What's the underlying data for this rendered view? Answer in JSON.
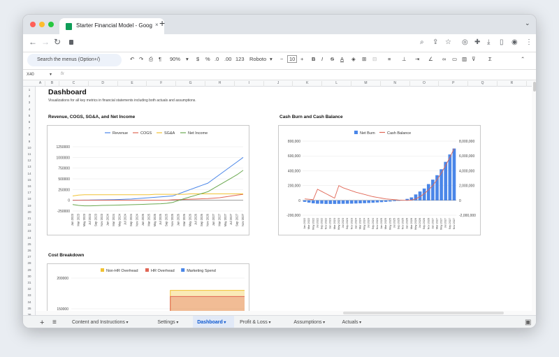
{
  "browser": {
    "tab_title": "Starter Financial Model - Goog",
    "close": "×",
    "new_tab": "+",
    "traffic_colors": [
      "#ff5f57",
      "#febc2e",
      "#28c840"
    ]
  },
  "toolbar": {
    "menu_search": "Search the menus (Option+/)",
    "zoom": "90%",
    "currency": "$",
    "percent": "%",
    "dec_less": ".0",
    "dec_more": ".00",
    "number_format": "123",
    "font": "Roboto",
    "font_size": "10",
    "minus": "−",
    "plus": "+",
    "bold": "B",
    "italic": "I",
    "strike": "S",
    "text_color": "A",
    "sigma": "Σ"
  },
  "formula_bar": {
    "cell_ref": "X40",
    "fx": "fx"
  },
  "columns": [
    "A",
    "B",
    "C",
    "D",
    "E",
    "F",
    "G",
    "H",
    "I",
    "J",
    "K",
    "L",
    "M",
    "N",
    "O",
    "P",
    "Q",
    "R"
  ],
  "rows": [
    "1",
    "2",
    "3",
    "4",
    "5",
    "6",
    "7",
    "8",
    "9",
    "10",
    "11",
    "12",
    "13",
    "14",
    "15",
    "16",
    "17",
    "18",
    "19",
    "20",
    "21",
    "22",
    "23",
    "24",
    "25",
    "26",
    "27",
    "28",
    "29",
    "30",
    "31",
    "32",
    "33",
    "34",
    "35",
    "36"
  ],
  "page": {
    "title": "Dashboard",
    "subtitle": "Visualizations for all key metrics in financial statements including both actuals and assumptions."
  },
  "chart_data": [
    {
      "type": "line",
      "title": "Revenue, COGS, SG&A, and Net Income",
      "x": [
        "Jan 2023",
        "Mar 2023",
        "May 2023",
        "Jul 2023",
        "Sep 2023",
        "Nov 2023",
        "Jan 2024",
        "Mar 2024",
        "May 2024",
        "Jul 2024",
        "Sep 2024",
        "Nov 2024",
        "Jan 2025",
        "Mar 2025",
        "May 2025",
        "Jul 2025",
        "Sep 2025",
        "Nov 2025",
        "Jan 2026",
        "Mar 2026",
        "May 2026",
        "Jul 2026",
        "Sep 2026",
        "Nov 2026",
        "Jan 2027",
        "Mar 2027",
        "May 2027",
        "Jul 2027",
        "Sep 2027",
        "Nov 2027"
      ],
      "y_ticks": [
        "1250000",
        "1000000",
        "750000",
        "500000",
        "250000",
        "0",
        "-250000"
      ],
      "ylim": [
        -250000,
        1250000
      ],
      "series": [
        {
          "name": "Revenue",
          "color": "#4a86e8",
          "values": [
            0,
            2000,
            4000,
            6000,
            8000,
            10000,
            12000,
            15000,
            20000,
            25000,
            30000,
            40000,
            50000,
            60000,
            70000,
            80000,
            90000,
            100000,
            150000,
            200000,
            250000,
            300000,
            350000,
            400000,
            500000,
            600000,
            700000,
            800000,
            900000,
            1000000
          ]
        },
        {
          "name": "COGS",
          "color": "#e06655",
          "values": [
            0,
            0,
            0,
            0,
            0,
            0,
            0,
            0,
            0,
            0,
            0,
            0,
            0,
            0,
            0,
            0,
            0,
            10000,
            15000,
            20000,
            25000,
            30000,
            35000,
            40000,
            50000,
            60000,
            80000,
            100000,
            120000,
            140000
          ]
        },
        {
          "name": "SG&A",
          "color": "#f1c232",
          "values": [
            100000,
            120000,
            130000,
            130000,
            130000,
            130000,
            130000,
            130000,
            130000,
            130000,
            130000,
            130000,
            130000,
            130000,
            140000,
            140000,
            140000,
            140000,
            140000,
            140000,
            150000,
            150000,
            150000,
            150000,
            150000,
            150000,
            150000,
            150000,
            150000,
            150000
          ]
        },
        {
          "name": "Net Income",
          "color": "#6aa84f",
          "values": [
            -100000,
            -120000,
            -130000,
            -130000,
            -125000,
            -120000,
            -118000,
            -116000,
            -112000,
            -108000,
            -104000,
            -100000,
            -95000,
            -90000,
            -85000,
            -80000,
            -70000,
            -50000,
            -5000,
            40000,
            80000,
            120000,
            160000,
            200000,
            280000,
            360000,
            440000,
            520000,
            600000,
            700000
          ]
        }
      ]
    },
    {
      "type": "bar",
      "title": "Cash Burn and Cash Balance",
      "x": [
        "Jan 2022",
        "Mar 2022",
        "May 2022",
        "Jul 2022",
        "Sep 2022",
        "Nov 2022",
        "Jan 2023",
        "Mar 2023",
        "May 2023",
        "Jul 2023",
        "Sep 2023",
        "Nov 2023",
        "Jan 2024",
        "Mar 2024",
        "May 2024",
        "Jul 2024",
        "Sep 2024",
        "Nov 2024",
        "Jan 2025",
        "Mar 2025",
        "May 2025",
        "Jul 2025",
        "Sep 2025",
        "Nov 2025",
        "Jan 2026",
        "Mar 2026",
        "May 2026",
        "Jul 2026",
        "Sep 2026",
        "Nov 2026",
        "Jan 2027",
        "Mar 2027",
        "May 2027",
        "Jul 2027",
        "Sep 2027",
        "Nov 2027"
      ],
      "left_ticks": [
        "800,000",
        "600,000",
        "400,000",
        "200,000",
        "0",
        "-200,000"
      ],
      "right_ticks": [
        "8,000,000",
        "6,000,000",
        "4,000,000",
        "2,000,000",
        "0",
        "-2,000,000"
      ],
      "ylim_left": [
        -200000,
        800000
      ],
      "ylim_right": [
        -2000000,
        8000000
      ],
      "series": [
        {
          "name": "Net Burn",
          "color": "#4a86e8",
          "values": [
            -20000,
            -30000,
            -40000,
            -45000,
            -45000,
            -48000,
            -48000,
            -48000,
            -47000,
            -46000,
            -45000,
            -44000,
            -42000,
            -40000,
            -38000,
            -35000,
            -32000,
            -28000,
            -24000,
            -20000,
            -15000,
            -10000,
            -5000,
            0,
            20000,
            40000,
            80000,
            120000,
            160000,
            220000,
            280000,
            340000,
            420000,
            520000,
            620000,
            700000
          ]
        },
        {
          "name": "Cash Balance",
          "color": "#e06655",
          "values": [
            200000,
            150000,
            100000,
            1500000,
            1200000,
            900000,
            600000,
            300000,
            2000000,
            1700000,
            1500000,
            1300000,
            1100000,
            950000,
            800000,
            650000,
            500000,
            400000,
            300000,
            200000,
            150000,
            100000,
            50000,
            20000,
            0,
            50000,
            200000,
            500000,
            900000,
            1400000,
            2000000,
            2800000,
            3700000,
            4700000,
            5800000,
            7000000
          ]
        }
      ]
    },
    {
      "type": "area",
      "title": "Cost Breakdown",
      "y_ticks": [
        "200000",
        "150000"
      ],
      "ylim": [
        100000,
        200000
      ],
      "series": [
        {
          "name": "Non-HR Overhead",
          "color": "#f1c232",
          "values": [
            0,
            120000,
            140000,
            140000,
            140000,
            140000,
            140000,
            140000,
            140000,
            140000,
            140000,
            140000,
            180000,
            180000,
            180000,
            180000,
            180000,
            180000,
            180000,
            180000,
            180000,
            180000
          ]
        },
        {
          "name": "HR Overhead",
          "color": "#e06655",
          "values": [
            0,
            110000,
            130000,
            130000,
            130000,
            130000,
            130000,
            130000,
            130000,
            130000,
            130000,
            130000,
            170000,
            170000,
            170000,
            170000,
            170000,
            170000,
            170000,
            170000,
            170000,
            170000
          ]
        },
        {
          "name": "Marketing Spend",
          "color": "#4a86e8",
          "values": [
            0,
            0,
            0,
            0,
            0,
            0,
            0,
            0,
            0,
            0,
            0,
            0,
            0,
            0,
            0,
            0,
            0,
            0,
            0,
            0,
            0,
            0
          ]
        }
      ]
    }
  ],
  "sheet_tabs": [
    {
      "label": "Content and Instructions",
      "active": false
    },
    {
      "label": "Settings",
      "active": false
    },
    {
      "label": "Dashboard",
      "active": true
    },
    {
      "label": "Profit & Loss",
      "active": false
    },
    {
      "label": "Assumptions",
      "active": false
    },
    {
      "label": "Actuals",
      "active": false
    }
  ],
  "bottom": {
    "add": "+",
    "list": "≡",
    "explore": "▣"
  }
}
